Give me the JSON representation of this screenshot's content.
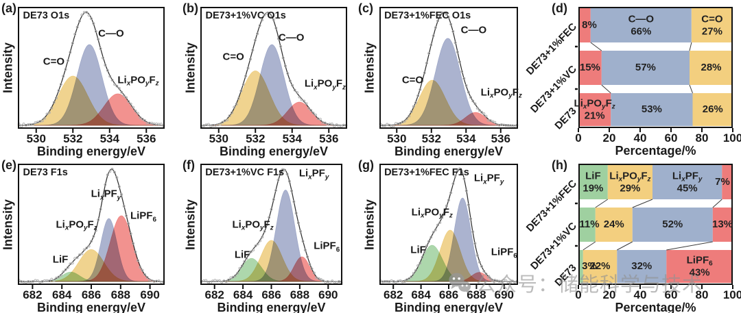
{
  "watermark": {
    "icon": "wechat-icon",
    "text": "公众号：储能科学与技术"
  },
  "chart_data": [
    {
      "id": "a",
      "type": "area",
      "panel_letter": "(a)",
      "title": "DE73 O1s",
      "xlabel": "Binding energy/eV",
      "ylabel": "Intensity",
      "xlim": [
        529,
        537
      ],
      "xticks": [
        530,
        532,
        534,
        536
      ],
      "peaks": [
        {
          "name": "C=O",
          "label": [
            [
              "C=O",
              0
            ]
          ],
          "center": 532.0,
          "sigma": 0.8,
          "amplitude": 0.5,
          "color": "#eecd7f",
          "label_pos": [
            0.245,
            0.45
          ]
        },
        {
          "name": "C-O",
          "label": [
            [
              "C—O",
              0
            ]
          ],
          "center": 532.9,
          "sigma": 0.68,
          "amplitude": 0.82,
          "color": "#9fa8c8",
          "label_pos": [
            0.635,
            0.22
          ]
        },
        {
          "name": "LixPOyFz",
          "label": [
            [
              "Li",
              0
            ],
            [
              "x",
              1
            ],
            [
              "PO",
              0
            ],
            [
              "y",
              1
            ],
            [
              "F",
              0
            ],
            [
              "z",
              1
            ]
          ],
          "center": 534.45,
          "sigma": 0.75,
          "amplitude": 0.32,
          "color": "#f08380",
          "label_pos": [
            0.82,
            0.6
          ]
        }
      ]
    },
    {
      "id": "b",
      "type": "area",
      "panel_letter": "(b)",
      "title": "DE73+1%VC O1s",
      "xlabel": "Binding energy/eV",
      "ylabel": "Intensity",
      "xlim": [
        529,
        537
      ],
      "xticks": [
        530,
        532,
        534,
        536
      ],
      "peaks": [
        {
          "name": "C=O",
          "label": [
            [
              "C=O",
              0
            ]
          ],
          "center": 532.0,
          "sigma": 0.75,
          "amplitude": 0.54,
          "color": "#eecd7f",
          "label_pos": [
            0.225,
            0.41
          ]
        },
        {
          "name": "C-O",
          "label": [
            [
              "C—O",
              0
            ]
          ],
          "center": 532.9,
          "sigma": 0.65,
          "amplitude": 0.8,
          "color": "#9fa8c8",
          "label_pos": [
            0.62,
            0.25
          ]
        },
        {
          "name": "LixPOyFz",
          "label": [
            [
              "Li",
              0
            ],
            [
              "x",
              1
            ],
            [
              "PO",
              0
            ],
            [
              "y",
              1
            ],
            [
              "F",
              0
            ],
            [
              "z",
              1
            ]
          ],
          "center": 534.4,
          "sigma": 0.65,
          "amplitude": 0.23,
          "color": "#f08380",
          "label_pos": [
            0.85,
            0.63
          ]
        }
      ]
    },
    {
      "id": "c",
      "type": "area",
      "panel_letter": "(c)",
      "title": "DE73+1%FEC O1s",
      "xlabel": "Binding energy/eV",
      "ylabel": "Intensity",
      "xlim": [
        529,
        537
      ],
      "xticks": [
        530,
        532,
        534,
        536
      ],
      "peaks": [
        {
          "name": "C=O",
          "label": [
            [
              "C=O",
              0
            ]
          ],
          "center": 532.05,
          "sigma": 0.75,
          "amplitude": 0.42,
          "color": "#eecd7f",
          "label_pos": [
            0.24,
            0.6
          ]
        },
        {
          "name": "C-O",
          "label": [
            [
              "C—O",
              0
            ]
          ],
          "center": 532.95,
          "sigma": 0.72,
          "amplitude": 0.81,
          "color": "#9fa8c8",
          "label_pos": [
            0.68,
            0.19
          ]
        },
        {
          "name": "LixPOyFz",
          "label": [
            [
              "Li",
              0
            ],
            [
              "x",
              1
            ],
            [
              "PO",
              0
            ],
            [
              "y",
              1
            ],
            [
              "F",
              0
            ],
            [
              "z",
              1
            ]
          ],
          "center": 534.55,
          "sigma": 0.58,
          "amplitude": 0.12,
          "color": "#f08380",
          "label_pos": [
            0.88,
            0.7
          ]
        }
      ]
    },
    {
      "id": "d",
      "type": "bar",
      "panel_letter": "(d)",
      "stacked": true,
      "orientation": "horizontal",
      "xlabel": "Percentage/%",
      "xlim": [
        0,
        100
      ],
      "xticks": [
        0,
        20,
        40,
        60,
        80,
        100
      ],
      "categories": [
        "DE73+1%FEC",
        "DE73+1%VC",
        "DE73"
      ],
      "series": [
        {
          "name": "LixPOyFz",
          "label": [
            [
              "Li",
              0
            ],
            [
              "x",
              1
            ],
            [
              "PO",
              0
            ],
            [
              "y",
              1
            ],
            [
              "F",
              0
            ],
            [
              "z",
              1
            ]
          ],
          "color": "#ee7c7b",
          "values": [
            8,
            15,
            21
          ],
          "title_row": 2
        },
        {
          "name": "C—O",
          "label": [
            [
              "C—O",
              0
            ]
          ],
          "color": "#9fb0cc",
          "values": [
            66,
            57,
            53
          ],
          "title_row": 0
        },
        {
          "name": "C=O",
          "label": [
            [
              "C=O",
              0
            ]
          ],
          "color": "#f3cf7f",
          "values": [
            27,
            28,
            26
          ],
          "title_row": 0
        }
      ]
    },
    {
      "id": "e",
      "type": "area",
      "panel_letter": "(e)",
      "title": "DE73 F1s",
      "xlabel": "Binding energy/eV",
      "ylabel": "Intensity",
      "xlim": [
        681,
        691
      ],
      "xticks": [
        682,
        684,
        686,
        688,
        690
      ],
      "peaks": [
        {
          "name": "LiF",
          "label": [
            [
              "LiF",
              0
            ]
          ],
          "center": 684.6,
          "sigma": 0.6,
          "amplitude": 0.1,
          "color": "#a2d2a1",
          "label_pos": [
            0.29,
            0.79
          ]
        },
        {
          "name": "LixPOyFz",
          "label": [
            [
              "Li",
              0
            ],
            [
              "x",
              1
            ],
            [
              "PO",
              0
            ],
            [
              "y",
              1
            ],
            [
              "F",
              0
            ],
            [
              "z",
              1
            ]
          ],
          "center": 686.0,
          "sigma": 0.85,
          "amplitude": 0.34,
          "color": "#eecd7f",
          "label_pos": [
            0.4,
            0.5
          ]
        },
        {
          "name": "LixPFy",
          "label": [
            [
              "Li",
              0
            ],
            [
              "x",
              1
            ],
            [
              "PF",
              0
            ],
            [
              "y",
              1
            ]
          ],
          "center": 687.2,
          "sigma": 0.55,
          "amplitude": 0.67,
          "color": "#9fa8c8",
          "label_pos": [
            0.6,
            0.25
          ]
        },
        {
          "name": "LiPF6",
          "label": [
            [
              "LiPF",
              0
            ],
            [
              "6",
              2
            ]
          ],
          "center": 688.05,
          "sigma": 0.75,
          "amplitude": 0.7,
          "color": "#f08380",
          "label_pos": [
            0.855,
            0.43
          ]
        }
      ]
    },
    {
      "id": "f",
      "type": "area",
      "panel_letter": "(f)",
      "title": "DE73+1%VC F1s",
      "xlabel": "Binding energy/eV",
      "ylabel": "Intensity",
      "xlim": [
        681,
        691
      ],
      "xticks": [
        682,
        684,
        686,
        688,
        690
      ],
      "peaks": [
        {
          "name": "LiF",
          "label": [
            [
              "LiF",
              0
            ]
          ],
          "center": 684.6,
          "sigma": 0.7,
          "amplitude": 0.225,
          "color": "#a2d2a1",
          "label_pos": [
            0.295,
            0.75
          ]
        },
        {
          "name": "LixPOyFz",
          "label": [
            [
              "Li",
              0
            ],
            [
              "x",
              1
            ],
            [
              "PO",
              0
            ],
            [
              "y",
              1
            ],
            [
              "F",
              0
            ],
            [
              "z",
              1
            ]
          ],
          "center": 686.0,
          "sigma": 0.75,
          "amplitude": 0.4,
          "color": "#eecd7f",
          "label_pos": [
            0.37,
            0.5
          ]
        },
        {
          "name": "LixPFy",
          "label": [
            [
              "Li",
              0
            ],
            [
              "x",
              1
            ],
            [
              "PF",
              0
            ],
            [
              "y",
              1
            ]
          ],
          "center": 687.0,
          "sigma": 0.65,
          "amplitude": 0.89,
          "color": "#9fa8c8",
          "label_pos": [
            0.8,
            0.08
          ]
        },
        {
          "name": "LiPF6",
          "label": [
            [
              "LiPF",
              0
            ],
            [
              "6",
              2
            ]
          ],
          "center": 688.15,
          "sigma": 0.55,
          "amplitude": 0.24,
          "color": "#f08380",
          "label_pos": [
            0.89,
            0.68
          ]
        }
      ]
    },
    {
      "id": "g",
      "type": "area",
      "panel_letter": "(g)",
      "title": "DE73+1%FEC F1s",
      "xlabel": "Binding energy/eV",
      "ylabel": "Intensity",
      "xlim": [
        681,
        691
      ],
      "xticks": [
        682,
        684,
        686,
        688,
        690
      ],
      "peaks": [
        {
          "name": "LiF",
          "label": [
            [
              "LiF",
              0
            ]
          ],
          "center": 684.8,
          "sigma": 0.75,
          "amplitude": 0.36,
          "color": "#a2d2a1",
          "label_pos": [
            0.28,
            0.71
          ]
        },
        {
          "name": "LixPOyFz",
          "label": [
            [
              "Li",
              0
            ],
            [
              "x",
              1
            ],
            [
              "PO",
              0
            ],
            [
              "y",
              1
            ],
            [
              "F",
              0
            ],
            [
              "z",
              1
            ]
          ],
          "center": 686.1,
          "sigma": 0.72,
          "amplitude": 0.51,
          "color": "#eecd7f",
          "label_pos": [
            0.38,
            0.4
          ]
        },
        {
          "name": "LixPFy",
          "label": [
            [
              "Li",
              0
            ],
            [
              "x",
              1
            ],
            [
              "PF",
              0
            ],
            [
              "y",
              1
            ]
          ],
          "center": 687.0,
          "sigma": 0.6,
          "amplitude": 0.83,
          "color": "#9fa8c8",
          "label_pos": [
            0.79,
            0.12
          ]
        },
        {
          "name": "LiPF6",
          "label": [
            [
              "LiPF",
              0
            ],
            [
              "6",
              2
            ]
          ],
          "center": 688.2,
          "sigma": 0.55,
          "amplitude": 0.09,
          "color": "#f08380",
          "label_pos": [
            0.9,
            0.73
          ]
        }
      ]
    },
    {
      "id": "h",
      "type": "bar",
      "panel_letter": "(h)",
      "stacked": true,
      "orientation": "horizontal",
      "xlabel": "Percentage/%",
      "xlim": [
        0,
        100
      ],
      "xticks": [
        0,
        20,
        40,
        60,
        80,
        100
      ],
      "categories": [
        "DE73+1%FEC",
        "DE73+1%VC",
        "DE73"
      ],
      "series": [
        {
          "name": "LiF",
          "label": [
            [
              "LiF",
              0
            ]
          ],
          "color": "#9fd0a0",
          "values": [
            19,
            11,
            3
          ],
          "title_row": 0
        },
        {
          "name": "LixPOyFz",
          "label": [
            [
              "Li",
              0
            ],
            [
              "x",
              1
            ],
            [
              "PO",
              0
            ],
            [
              "y",
              1
            ],
            [
              "F",
              0
            ],
            [
              "z",
              1
            ]
          ],
          "color": "#f3cf7f",
          "values": [
            29,
            24,
            22
          ],
          "title_row": 0
        },
        {
          "name": "LixPFy",
          "label": [
            [
              "Li",
              0
            ],
            [
              "x",
              1
            ],
            [
              "PF",
              0
            ],
            [
              "y",
              1
            ]
          ],
          "color": "#9fb0cc",
          "values": [
            45,
            52,
            32
          ],
          "title_row": 0
        },
        {
          "name": "LiPF6",
          "label": [
            [
              "LiPF",
              0
            ],
            [
              "6",
              2
            ]
          ],
          "color": "#ee7c7b",
          "values": [
            7,
            13,
            43
          ],
          "title_row": 2
        }
      ]
    }
  ]
}
